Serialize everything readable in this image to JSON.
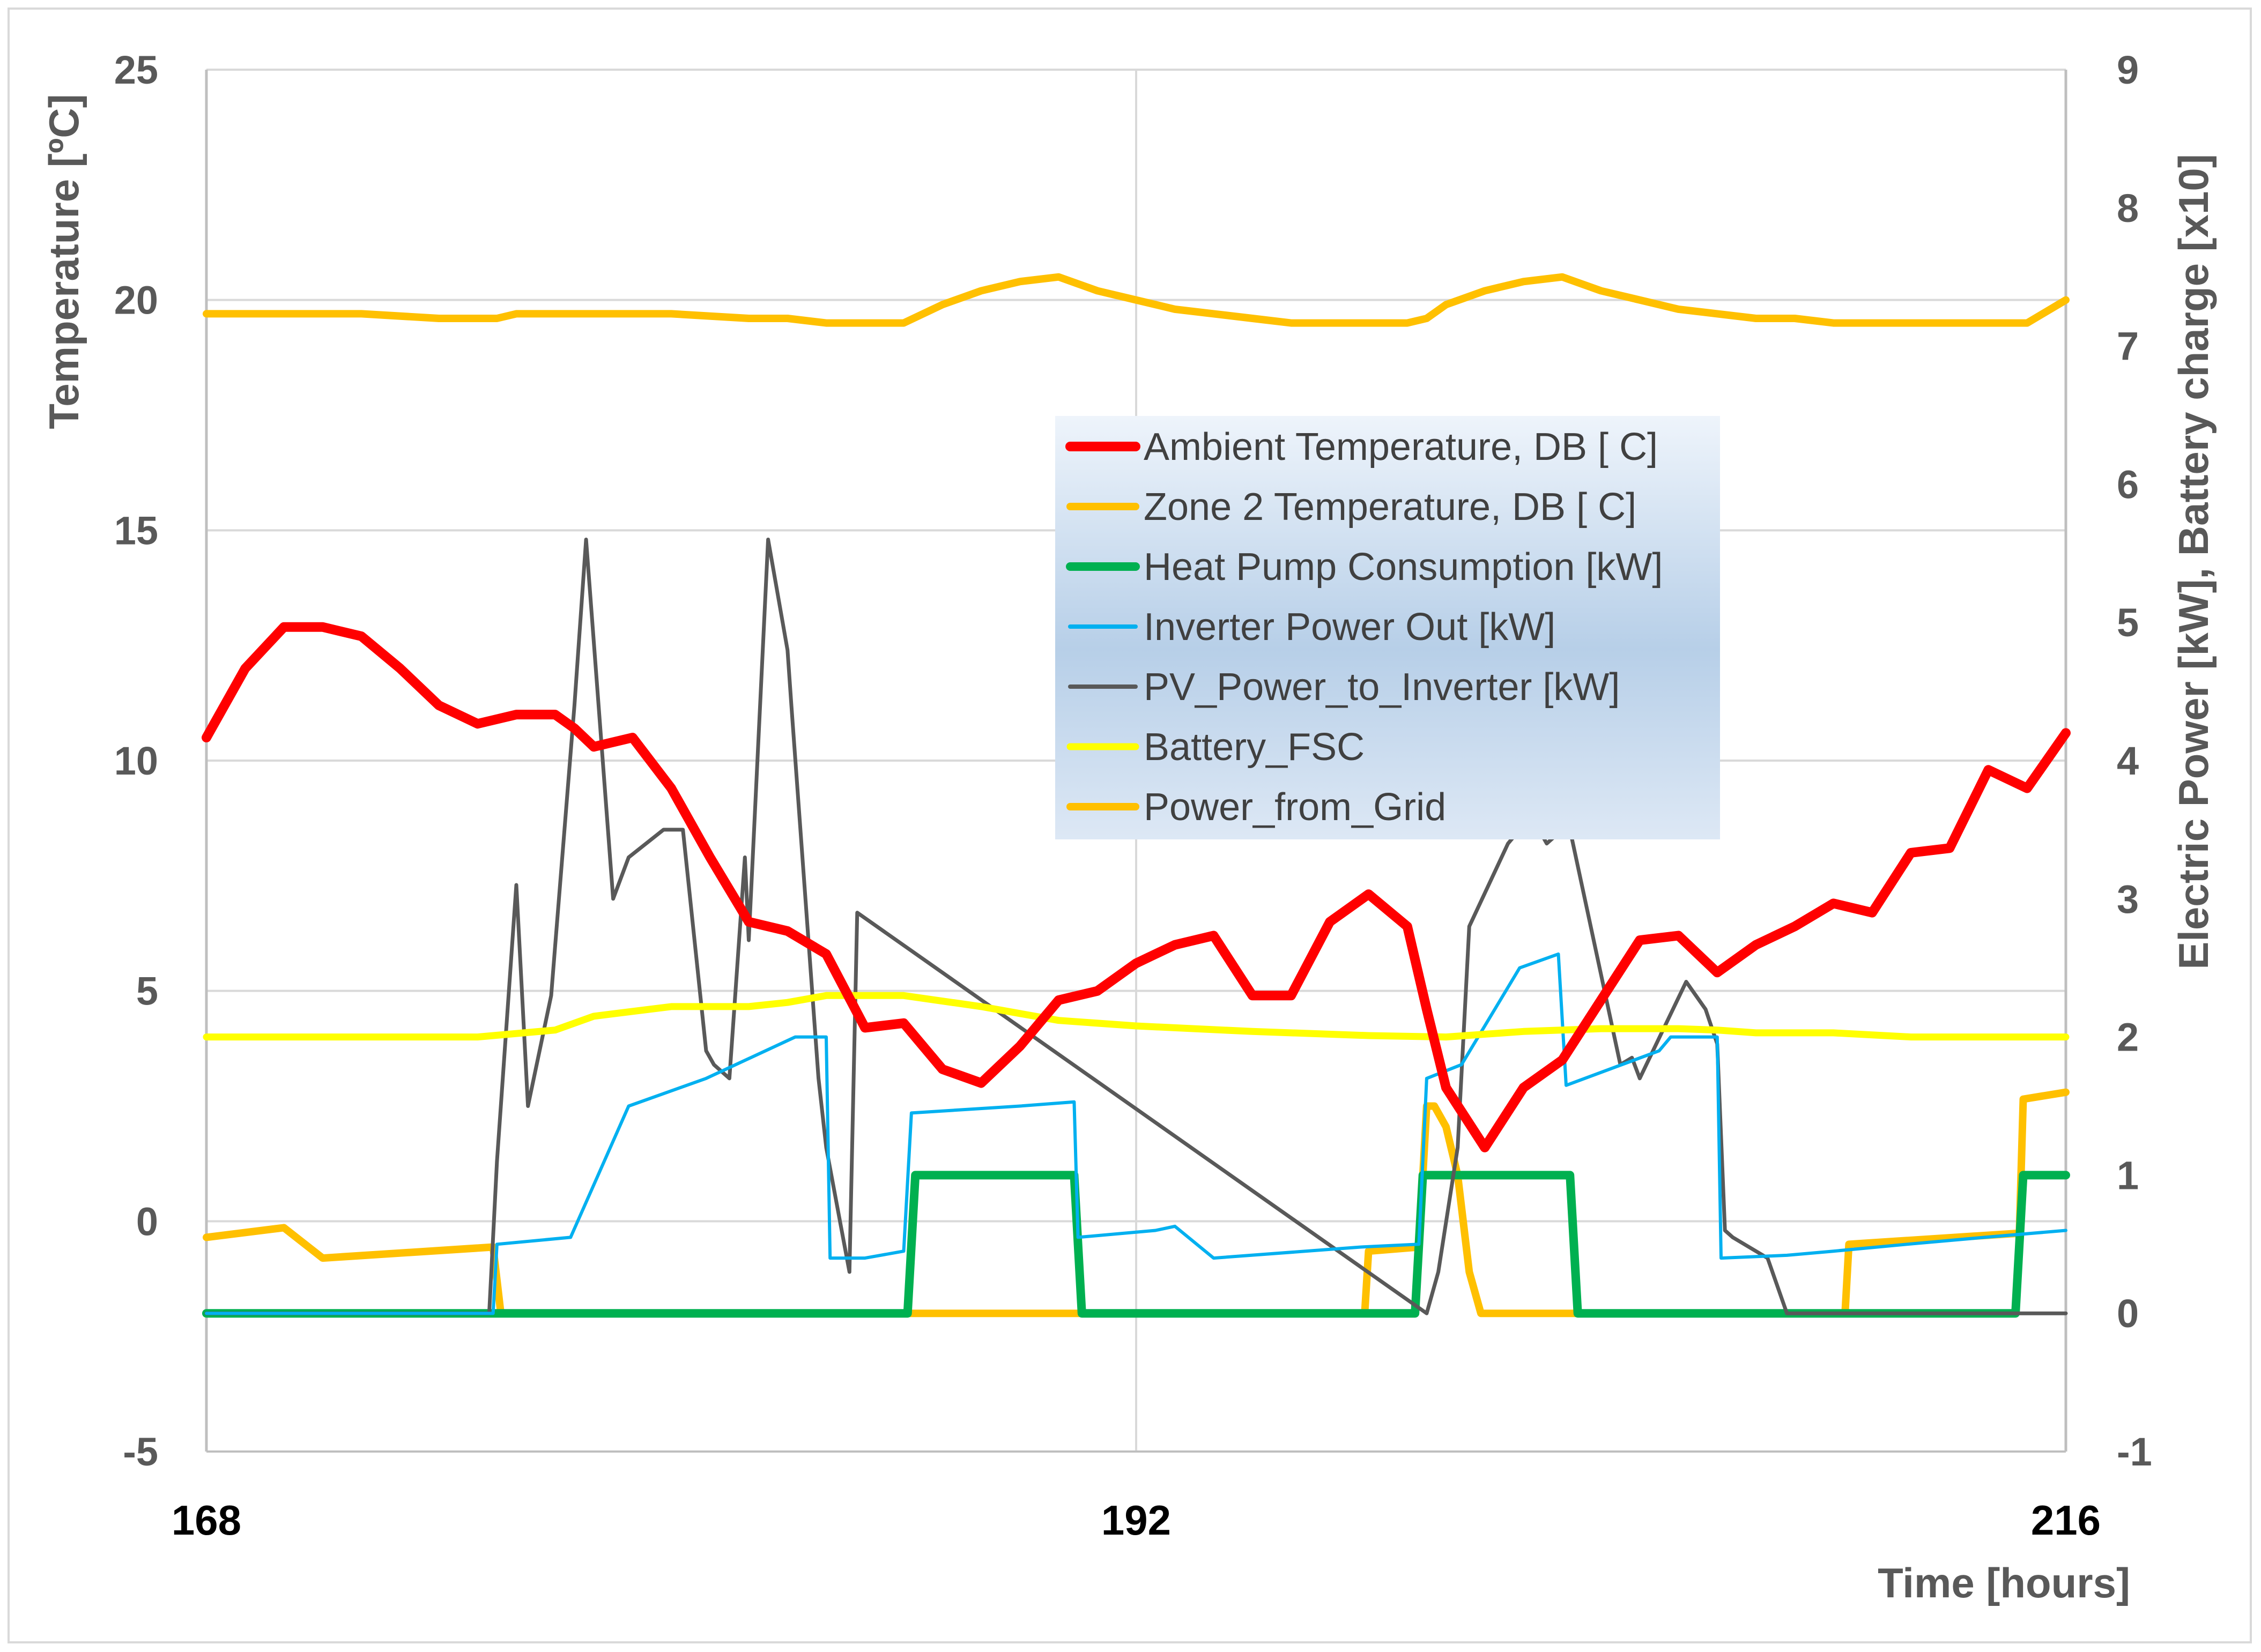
{
  "chart_data": {
    "type": "line",
    "title": "",
    "xlabel": "Time [hours]",
    "ylabel_left": "Temperature [ºC]",
    "ylabel_right": "Electric Power [kW], Battery charge [x10]",
    "xlim": [
      168,
      216
    ],
    "ylim_left": [
      -5,
      25
    ],
    "ylim_right": [
      -1,
      9
    ],
    "xticks": [
      168,
      192,
      216
    ],
    "yticks_left": [
      -5,
      0,
      5,
      10,
      15,
      20,
      25
    ],
    "yticks_right": [
      -1,
      0,
      1,
      2,
      3,
      4,
      5,
      6,
      7,
      8,
      9
    ],
    "grid": true,
    "legend_position": "center",
    "series": [
      {
        "name": "Ambient Temperature, DB [ C]",
        "axis": "left",
        "color": "#ff0000",
        "x": [
          168,
          169,
          170,
          171,
          172,
          173,
          174,
          175,
          176,
          177,
          177.5,
          178,
          179,
          180,
          181,
          182,
          183,
          184,
          185,
          186,
          187,
          188,
          189,
          190,
          191,
          192,
          193,
          194,
          195,
          196,
          197,
          198,
          199,
          199.5,
          200,
          201,
          202,
          203,
          204,
          205,
          206,
          207,
          208,
          209,
          210,
          211,
          212,
          213,
          214,
          215,
          216
        ],
        "y": [
          10.5,
          12.0,
          12.9,
          12.9,
          12.7,
          12.0,
          11.2,
          10.8,
          11.0,
          11.0,
          10.7,
          10.3,
          10.5,
          9.4,
          7.9,
          6.5,
          6.3,
          5.8,
          4.2,
          4.3,
          3.3,
          3.0,
          3.8,
          4.8,
          5.0,
          5.6,
          6.0,
          6.2,
          4.9,
          4.9,
          6.5,
          7.1,
          6.4,
          4.6,
          2.9,
          1.6,
          2.9,
          3.5,
          4.8,
          6.1,
          6.2,
          5.4,
          6.0,
          6.4,
          6.9,
          6.7,
          8.0,
          8.1,
          9.8,
          9.4,
          10.6
        ]
      },
      {
        "name": "Zone 2 Temperature, DB [ C]",
        "axis": "left",
        "color": "#ffc000",
        "x": [
          168,
          170,
          172,
          174,
          175.5,
          176,
          178,
          180,
          182,
          183,
          184,
          185,
          186,
          187,
          188,
          189,
          190,
          191,
          192,
          193,
          194,
          195,
          196,
          197,
          198,
          199,
          199.5,
          200,
          201,
          202,
          203,
          204,
          205,
          206,
          207,
          208,
          209,
          210,
          211,
          212,
          213,
          214,
          215,
          216
        ],
        "y": [
          19.7,
          19.7,
          19.7,
          19.6,
          19.6,
          19.7,
          19.7,
          19.7,
          19.6,
          19.6,
          19.5,
          19.5,
          19.5,
          19.9,
          20.2,
          20.4,
          20.5,
          20.2,
          20.0,
          19.8,
          19.7,
          19.6,
          19.5,
          19.5,
          19.5,
          19.5,
          19.6,
          19.9,
          20.2,
          20.4,
          20.5,
          20.2,
          20.0,
          19.8,
          19.7,
          19.6,
          19.6,
          19.5,
          19.5,
          19.5,
          19.5,
          19.5,
          19.5,
          20.0
        ]
      },
      {
        "name": "Heat Pump Consumption [kW]",
        "axis": "right",
        "color": "#00b050",
        "x": [
          168,
          186.1,
          186.3,
          190.4,
          190.6,
          199.2,
          199.4,
          203.2,
          203.4,
          214.7,
          214.9,
          216
        ],
        "y": [
          0,
          0,
          1,
          1,
          0,
          0,
          1,
          1,
          0,
          0,
          1,
          1
        ]
      },
      {
        "name": "Inverter Power Out [kW]",
        "axis": "right",
        "color": "#00b0f0",
        "x": [
          168,
          175.4,
          175.5,
          177.4,
          178.9,
          180.9,
          183.2,
          184.0,
          184.1,
          185.0,
          186.0,
          186.2,
          189.0,
          190.4,
          190.5,
          192.5,
          193.0,
          194.0,
          197.8,
          199.3,
          199.5,
          200.4,
          201.9,
          202.9,
          203.1,
          205.5,
          205.8,
          207.0,
          207.1,
          208.8,
          210.0,
          211.9,
          213.9,
          216
        ],
        "y": [
          0,
          0,
          0.5,
          0.55,
          1.5,
          1.7,
          2.0,
          2.0,
          0.4,
          0.4,
          0.45,
          1.45,
          1.5,
          1.53,
          0.55,
          0.6,
          0.63,
          0.4,
          0.48,
          0.5,
          1.7,
          1.8,
          2.5,
          2.6,
          1.65,
          1.9,
          2.0,
          2.0,
          0.4,
          0.42,
          0.45,
          0.5,
          0.55,
          0.6
        ]
      },
      {
        "name": "PV_Power_to_Inverter [kW]",
        "axis": "right",
        "color": "#595959",
        "x": [
          168,
          175.3,
          175.5,
          176.0,
          176.3,
          176.9,
          177.5,
          177.8,
          178.5,
          178.9,
          179.8,
          180.3,
          180.9,
          181.1,
          181.5,
          181.9,
          182.0,
          182.5,
          183.0,
          183.1,
          183.8,
          184.0,
          184.2,
          184.6,
          184.8,
          199.5,
          199.8,
          200.3,
          200.6,
          201.6,
          201.9,
          202.2,
          202.6,
          203.0,
          203.2,
          204.5,
          204.8,
          205.0,
          206.2,
          206.7,
          207.0,
          207.2,
          207.4,
          208.3,
          208.8,
          216
        ],
        "y": [
          0,
          0,
          1.1,
          3.1,
          1.5,
          2.3,
          4.4,
          5.6,
          3.0,
          3.3,
          3.5,
          3.5,
          1.9,
          1.8,
          1.7,
          3.3,
          2.7,
          5.6,
          4.8,
          4.4,
          1.7,
          1.2,
          0.9,
          0.3,
          2.9,
          0,
          0.3,
          1.2,
          2.8,
          3.4,
          3.5,
          3.6,
          3.4,
          3.5,
          3.5,
          1.8,
          1.85,
          1.7,
          2.4,
          2.2,
          1.95,
          0.6,
          0.55,
          0.4,
          0,
          0
        ]
      },
      {
        "name": "Battery_FSC",
        "axis": "right",
        "color": "#ffff00",
        "x": [
          168,
          175,
          177,
          178,
          180,
          182,
          183,
          184,
          185,
          186,
          188,
          190,
          192,
          195,
          198,
          200,
          202,
          204,
          206,
          207,
          208,
          210,
          212,
          216
        ],
        "y": [
          2.0,
          2.0,
          2.05,
          2.15,
          2.22,
          2.22,
          2.25,
          2.3,
          2.3,
          2.3,
          2.22,
          2.12,
          2.08,
          2.04,
          2.01,
          2.0,
          2.04,
          2.06,
          2.06,
          2.05,
          2.03,
          2.03,
          2.0,
          2.0
        ]
      },
      {
        "name": "Power_from_Grid",
        "axis": "right",
        "color": "#ffc000",
        "x": [
          168,
          170,
          171,
          175.4,
          175.6,
          197.9,
          198.0,
          199.3,
          199.5,
          199.7,
          200.0,
          200.3,
          200.6,
          200.9,
          210.3,
          210.4,
          214.8,
          214.9,
          216
        ],
        "y": [
          0.55,
          0.62,
          0.4,
          0.48,
          0,
          0,
          0.45,
          0.48,
          1.5,
          1.5,
          1.35,
          1.0,
          0.3,
          0,
          0,
          0.5,
          0.58,
          1.55,
          1.6
        ]
      }
    ]
  }
}
